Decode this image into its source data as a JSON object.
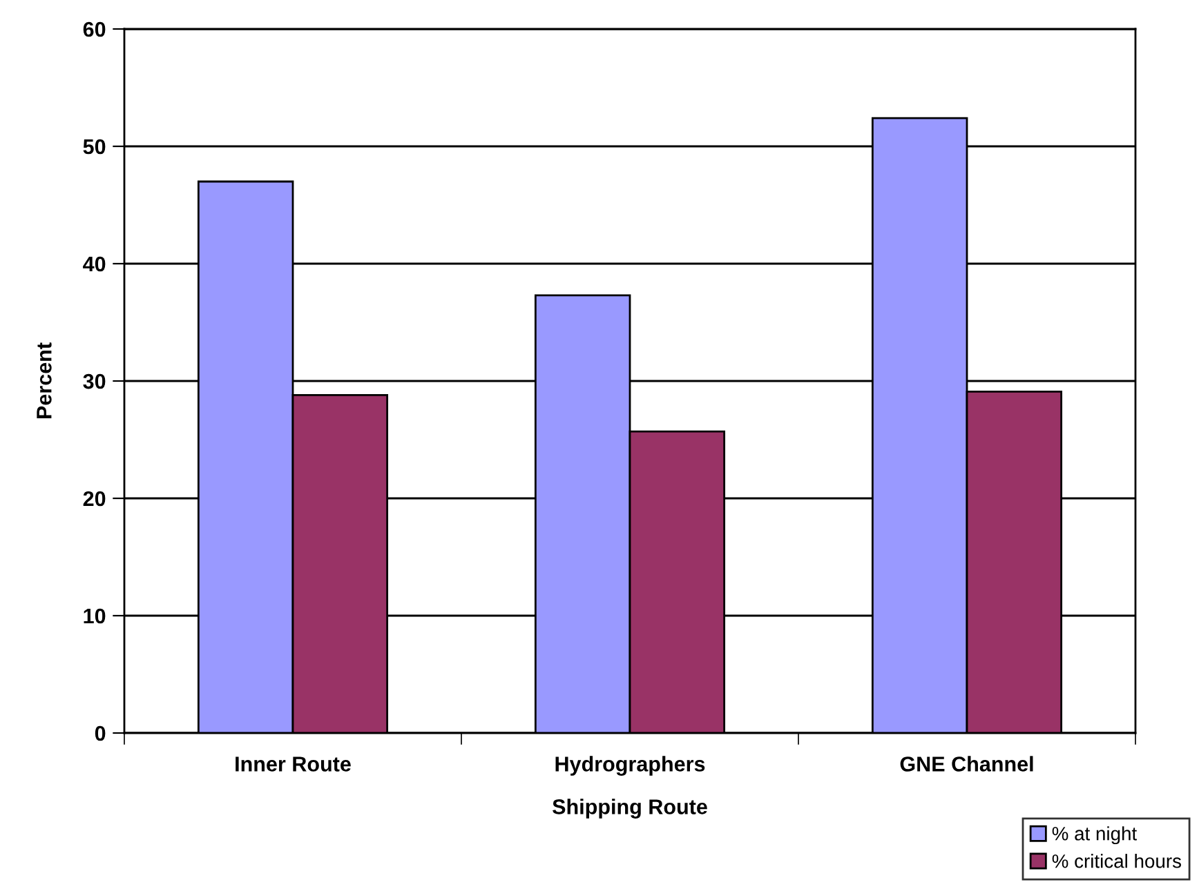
{
  "chart_data": {
    "type": "bar",
    "xlabel": "Shipping Route",
    "ylabel": "Percent",
    "categories": [
      "Inner Route",
      "Hydrographers",
      "GNE Channel"
    ],
    "series": [
      {
        "name": "% at night",
        "color": "#9999ff",
        "values": [
          47.0,
          37.3,
          52.4
        ]
      },
      {
        "name": "% critical hours",
        "color": "#993366",
        "values": [
          28.8,
          25.7,
          29.1
        ]
      }
    ],
    "ylim": [
      0,
      60
    ],
    "yticks": [
      0,
      10,
      20,
      30,
      40,
      50,
      60
    ],
    "grid": "y",
    "legend": "bottom right"
  }
}
